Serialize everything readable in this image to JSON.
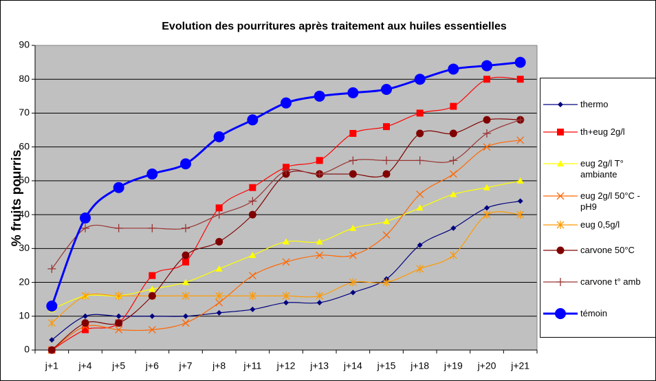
{
  "chart_data": {
    "type": "line",
    "title": "Evolution des pourritures après traitement aux huiles essentielles",
    "ylabel": "% fruits pourris",
    "categories": [
      "j+1",
      "j+4",
      "j+5",
      "j+6",
      "j+7",
      "j+8",
      "j+11",
      "j+12",
      "j+13",
      "j+14",
      "j+15",
      "j+18",
      "j+19",
      "j+20",
      "j+21"
    ],
    "ylim": [
      0,
      90
    ],
    "yticks": [
      0,
      10,
      20,
      30,
      40,
      50,
      60,
      70,
      80,
      90
    ],
    "grid": true,
    "legend": "right",
    "series": [
      {
        "name": "thermo",
        "color": "#000080",
        "marker": "diamond",
        "values": [
          3,
          10,
          10,
          10,
          10,
          11,
          12,
          14,
          14,
          17,
          21,
          31,
          36,
          42,
          44
        ]
      },
      {
        "name": "th+eug 2g/l",
        "color": "#FF0000",
        "marker": "square",
        "values": [
          0,
          6,
          8,
          22,
          26,
          42,
          48,
          54,
          56,
          64,
          66,
          70,
          72,
          80,
          80
        ]
      },
      {
        "name": "eug 2g/l T° ambiante",
        "color": "#FFFF00",
        "marker": "triangle",
        "values": [
          12,
          16,
          16,
          18,
          20,
          24,
          28,
          32,
          32,
          36,
          38,
          42,
          46,
          48,
          50
        ]
      },
      {
        "name": "eug 2g/l 50°C - pH9",
        "color": "#FF6600",
        "marker": "x",
        "values": [
          0,
          7,
          6,
          6,
          8,
          14,
          22,
          26,
          28,
          28,
          34,
          46,
          52,
          60,
          62
        ]
      },
      {
        "name": "eug 0,5g/l",
        "color": "#FF9900",
        "marker": "asterisk",
        "values": [
          8,
          16,
          16,
          16,
          16,
          16,
          16,
          16,
          16,
          20,
          20,
          24,
          28,
          40,
          40
        ]
      },
      {
        "name": "carvone 50°C",
        "color": "#800000",
        "marker": "circle",
        "values": [
          0,
          8,
          8,
          16,
          28,
          32,
          40,
          52,
          52,
          52,
          52,
          64,
          64,
          68,
          68
        ]
      },
      {
        "name": "carvone t° amb",
        "color": "#993333",
        "marker": "plus",
        "values": [
          24,
          36,
          36,
          36,
          36,
          40,
          44,
          53,
          52,
          56,
          56,
          56,
          56,
          64,
          68
        ]
      },
      {
        "name": "témoin",
        "color": "#0000FF",
        "marker": "big-circle",
        "values": [
          13,
          39,
          48,
          52,
          55,
          63,
          68,
          73,
          75,
          76,
          77,
          80,
          83,
          84,
          85
        ]
      }
    ]
  }
}
